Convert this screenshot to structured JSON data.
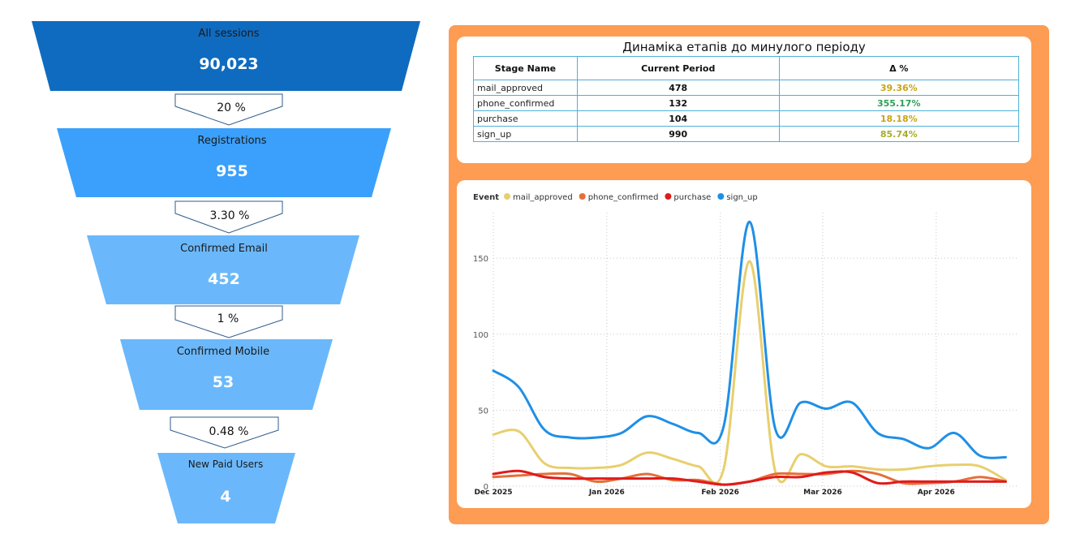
{
  "funnel": {
    "stages": [
      {
        "label": "All sessions",
        "value": "90,023",
        "color": "#0f6bbf"
      },
      {
        "label": "Registrations",
        "value": "955",
        "color": "#3aa0fb"
      },
      {
        "label": "Confirmed Email",
        "value": "452",
        "color": "#6ab8fb"
      },
      {
        "label": "Confirmed Mobile",
        "value": "53",
        "color": "#6ab8fb"
      },
      {
        "label": "New Paid Users",
        "value": "4",
        "color": "#6ab8fb"
      }
    ],
    "conversions": [
      "20 %",
      "3.30 %",
      "1 %",
      "0.48 %"
    ]
  },
  "table": {
    "title": "Динаміка етапів до минулого періоду",
    "headers": [
      "Stage Name",
      "Current Period",
      "Δ %"
    ],
    "rows": [
      {
        "name": "mail_approved",
        "current": "478",
        "delta": "39.36%",
        "delta_color": "#c8a415"
      },
      {
        "name": "phone_confirmed",
        "current": "132",
        "delta": "355.17%",
        "delta_color": "#2e9e58"
      },
      {
        "name": "purchase",
        "current": "104",
        "delta": "18.18%",
        "delta_color": "#c8a415"
      },
      {
        "name": "sign_up",
        "current": "990",
        "delta": "85.74%",
        "delta_color": "#a3ad2a"
      }
    ]
  },
  "chart_data": {
    "type": "line",
    "legend_title": "Event",
    "legend_position": "top-left",
    "grid": true,
    "ylim": [
      0,
      180
    ],
    "yticks": [
      0,
      50,
      100,
      150
    ],
    "x_range": [
      "2025-12-01",
      "2026-04-23"
    ],
    "xticks": [
      {
        "date": "2025-12-01",
        "label": "Dec 2025"
      },
      {
        "date": "2026-01-01",
        "label": "Jan 2026"
      },
      {
        "date": "2026-02-01",
        "label": "Feb 2026"
      },
      {
        "date": "2026-03-01",
        "label": "Mar 2026"
      },
      {
        "date": "2026-04-01",
        "label": "Apr 2026"
      }
    ],
    "x": [
      "2025-12-01",
      "2025-12-08",
      "2025-12-15",
      "2025-12-22",
      "2025-12-29",
      "2026-01-05",
      "2026-01-12",
      "2026-01-19",
      "2026-01-26",
      "2026-02-02",
      "2026-02-09",
      "2026-02-16",
      "2026-02-23",
      "2026-03-02",
      "2026-03-09",
      "2026-03-16",
      "2026-03-23",
      "2026-03-30",
      "2026-04-06",
      "2026-04-13",
      "2026-04-20"
    ],
    "series": [
      {
        "name": "mail_approved",
        "color": "#e8cf6e",
        "values": [
          34,
          36,
          15,
          12,
          12,
          14,
          22,
          18,
          13,
          12,
          148,
          10,
          21,
          13,
          13,
          11,
          11,
          13,
          14,
          13,
          4
        ]
      },
      {
        "name": "phone_confirmed",
        "color": "#e56f3a",
        "values": [
          6,
          7,
          8,
          8,
          3,
          5,
          8,
          4,
          4,
          1,
          3,
          8,
          8,
          8,
          10,
          8,
          2,
          2,
          3,
          6,
          3
        ]
      },
      {
        "name": "purchase",
        "color": "#e01b1b",
        "values": [
          8,
          10,
          6,
          5,
          5,
          5,
          5,
          5,
          3,
          1,
          3,
          6,
          6,
          9,
          9,
          2,
          3,
          3,
          3,
          3,
          3
        ]
      },
      {
        "name": "sign_up",
        "color": "#1f8fe6",
        "values": [
          76,
          65,
          37,
          32,
          32,
          35,
          46,
          41,
          35,
          40,
          174,
          38,
          55,
          51,
          55,
          35,
          31,
          25,
          35,
          20,
          19
        ]
      }
    ]
  }
}
